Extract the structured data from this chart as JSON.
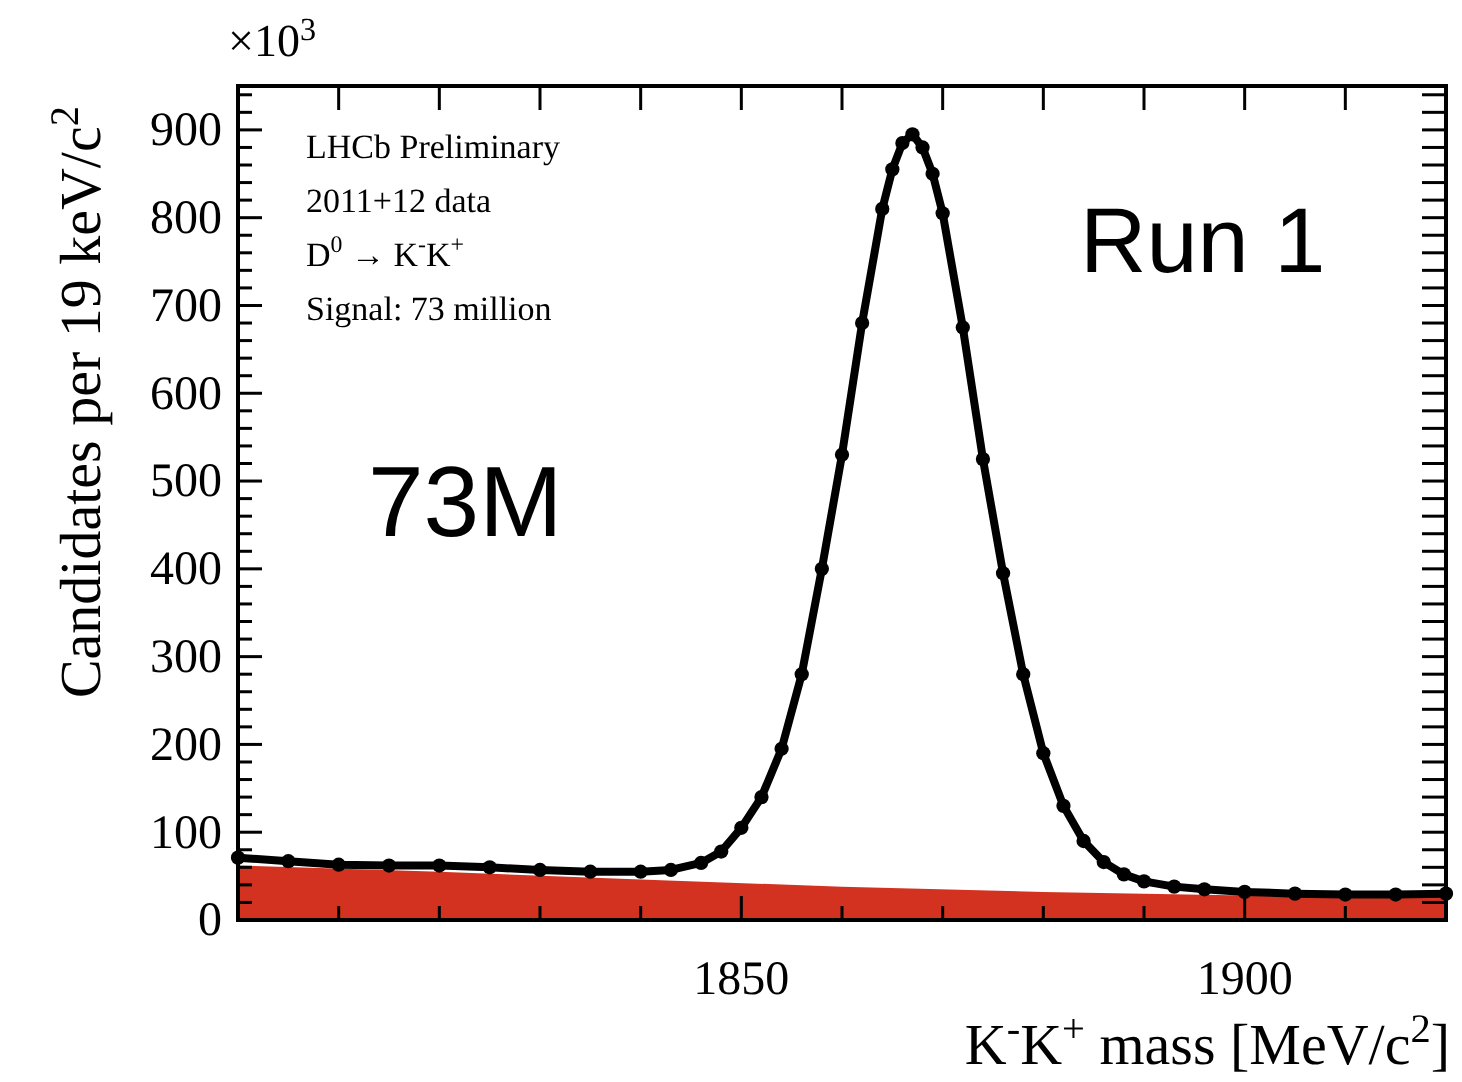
{
  "chart_data": {
    "type": "line",
    "xlabel": "K$^{-}$K$^{+}$ mass [MeV/c$^{2}$]",
    "ylabel": "Candidates per 19 keV/c$^{2}$",
    "xlim": [
      1800,
      1920
    ],
    "ylim": [
      0,
      950
    ],
    "xticks": [
      {
        "value": 1810,
        "label": null
      },
      {
        "value": 1820,
        "label": null
      },
      {
        "value": 1830,
        "label": null
      },
      {
        "value": 1840,
        "label": null
      },
      1850,
      {
        "value": 1860,
        "label": null
      },
      {
        "value": 1870,
        "label": null
      },
      {
        "value": 1880,
        "label": null
      },
      {
        "value": 1890,
        "label": null
      },
      1900,
      {
        "value": 1910,
        "label": null
      }
    ],
    "yticks": [
      0,
      {
        "value": 20,
        "label": null
      },
      {
        "value": 40,
        "label": null
      },
      {
        "value": 60,
        "label": null
      },
      {
        "value": 80,
        "label": null
      },
      100,
      {
        "value": 120,
        "label": null
      },
      {
        "value": 140,
        "label": null
      },
      {
        "value": 160,
        "label": null
      },
      {
        "value": 180,
        "label": null
      },
      200,
      {
        "value": 220,
        "label": null
      },
      {
        "value": 240,
        "label": null
      },
      {
        "value": 260,
        "label": null
      },
      {
        "value": 280,
        "label": null
      },
      300,
      {
        "value": 320,
        "label": null
      },
      {
        "value": 340,
        "label": null
      },
      {
        "value": 360,
        "label": null
      },
      {
        "value": 380,
        "label": null
      },
      400,
      {
        "value": 420,
        "label": null
      },
      {
        "value": 440,
        "label": null
      },
      {
        "value": 460,
        "label": null
      },
      {
        "value": 480,
        "label": null
      },
      500,
      {
        "value": 520,
        "label": null
      },
      {
        "value": 540,
        "label": null
      },
      {
        "value": 560,
        "label": null
      },
      {
        "value": 580,
        "label": null
      },
      600,
      {
        "value": 620,
        "label": null
      },
      {
        "value": 640,
        "label": null
      },
      {
        "value": 660,
        "label": null
      },
      {
        "value": 680,
        "label": null
      },
      700,
      {
        "value": 720,
        "label": null
      },
      {
        "value": 740,
        "label": null
      },
      {
        "value": 760,
        "label": null
      },
      {
        "value": 780,
        "label": null
      },
      800,
      {
        "value": 820,
        "label": null
      },
      {
        "value": 840,
        "label": null
      },
      {
        "value": 860,
        "label": null
      },
      {
        "value": 880,
        "label": null
      },
      900,
      {
        "value": 920,
        "label": null
      },
      {
        "value": 940,
        "label": null
      }
    ],
    "series": [
      {
        "type": "area",
        "color": "#d2321f",
        "x": [
          1800,
          1820,
          1840,
          1860,
          1880,
          1900,
          1920
        ],
        "values": [
          62,
          55,
          46,
          38,
          32,
          28,
          26
        ]
      },
      {
        "color": "#000000",
        "marker": "circle",
        "x": [
          1800,
          1805,
          1810,
          1815,
          1820,
          1825,
          1830,
          1835,
          1840,
          1843,
          1846,
          1848,
          1850,
          1852,
          1854,
          1856,
          1858,
          1860,
          1862,
          1864,
          1865,
          1866,
          1867,
          1868,
          1869,
          1870,
          1872,
          1874,
          1876,
          1878,
          1880,
          1882,
          1884,
          1886,
          1888,
          1890,
          1893,
          1896,
          1900,
          1905,
          1910,
          1915,
          1920
        ],
        "values": [
          71,
          67,
          63,
          62,
          62,
          60,
          57,
          55,
          55,
          57,
          65,
          78,
          105,
          140,
          195,
          280,
          400,
          530,
          680,
          810,
          855,
          885,
          895,
          880,
          850,
          805,
          675,
          525,
          395,
          280,
          190,
          130,
          90,
          66,
          52,
          44,
          38,
          35,
          32,
          30,
          29,
          29,
          30
        ]
      }
    ],
    "annotations": [
      "×10$^{3}$",
      "LHCb Preliminary",
      "2011+12 data",
      "D$^{0}$ → K$^{-}$K$^{+}$",
      "Signal: 73 million",
      "73M",
      "Run 1"
    ],
    "grid": false
  }
}
